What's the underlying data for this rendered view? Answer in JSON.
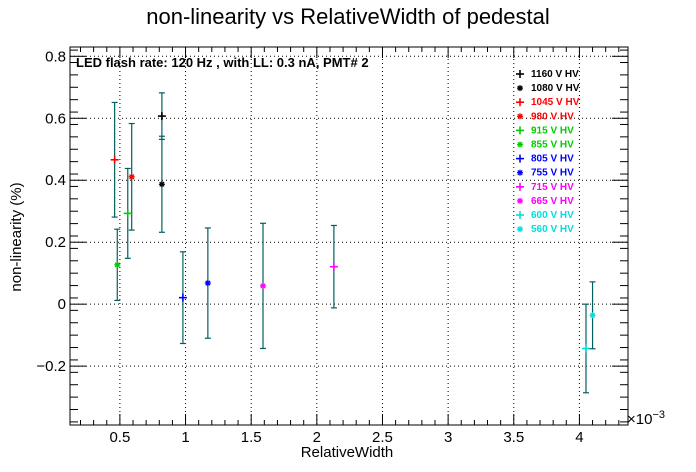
{
  "chart_data": {
    "type": "scatter",
    "title": "non-linearity vs RelativeWidth of pedestal",
    "xlabel": "RelativeWidth",
    "ylabel": "non-linearity (%)",
    "x_exponent_label": "×10",
    "x_exponent": "−3",
    "annotation": "LED flash rate: 120 Hz , with LL: 0.3 nA, PMT# 2",
    "xlim": [
      0.00012,
      0.00437
    ],
    "ylim": [
      -0.39,
      0.83
    ],
    "grid": true,
    "legend_position": "top-right",
    "error_bar_color": "#006060",
    "x_ticks": [
      0.0005,
      0.001,
      0.0015,
      0.002,
      0.0025,
      0.003,
      0.0035,
      0.004
    ],
    "x_tick_labels": [
      "0.5",
      "1",
      "1.5",
      "2",
      "2.5",
      "3",
      "3.5",
      "4"
    ],
    "y_ticks": [
      -0.2,
      0,
      0.2,
      0.4,
      0.6,
      0.8
    ],
    "y_tick_labels": [
      "−0.2",
      "0",
      "0.2",
      "0.4",
      "0.6",
      "0.8"
    ],
    "series": [
      {
        "name": "1160 V HV",
        "color": "#000000",
        "marker": "plus",
        "x": 0.00082,
        "y": 0.607,
        "err": 0.075
      },
      {
        "name": "1080 V HV",
        "color": "#000000",
        "marker": "star",
        "x": 0.00082,
        "y": 0.387,
        "err": 0.155
      },
      {
        "name": "1045 V HV",
        "color": "#ff0000",
        "marker": "plus",
        "x": 0.00046,
        "y": 0.466,
        "err": 0.185
      },
      {
        "name": "980 V HV",
        "color": "#ff0000",
        "marker": "star",
        "x": 0.00059,
        "y": 0.411,
        "err": 0.172
      },
      {
        "name": "915 V HV",
        "color": "#00cc00",
        "marker": "plus",
        "x": 0.00056,
        "y": 0.293,
        "err": 0.145
      },
      {
        "name": "855 V HV",
        "color": "#00cc00",
        "marker": "star",
        "x": 0.00048,
        "y": 0.127,
        "err": 0.115
      },
      {
        "name": "805 V HV",
        "color": "#0000ff",
        "marker": "plus",
        "x": 0.00098,
        "y": 0.021,
        "err": 0.148
      },
      {
        "name": "755 V HV",
        "color": "#0000ff",
        "marker": "star",
        "x": 0.00117,
        "y": 0.068,
        "err": 0.178
      },
      {
        "name": "715 V HV",
        "color": "#ff00ff",
        "marker": "plus",
        "x": 0.00213,
        "y": 0.121,
        "err": 0.133
      },
      {
        "name": "665 V HV",
        "color": "#ff00ff",
        "marker": "star",
        "x": 0.00159,
        "y": 0.059,
        "err": 0.202
      },
      {
        "name": "600 V HV",
        "color": "#00e0e0",
        "marker": "plus",
        "x": 0.00405,
        "y": -0.143,
        "err": 0.143
      },
      {
        "name": "560 V HV",
        "color": "#00e0e0",
        "marker": "star",
        "x": 0.0041,
        "y": -0.036,
        "err": 0.108
      }
    ]
  }
}
